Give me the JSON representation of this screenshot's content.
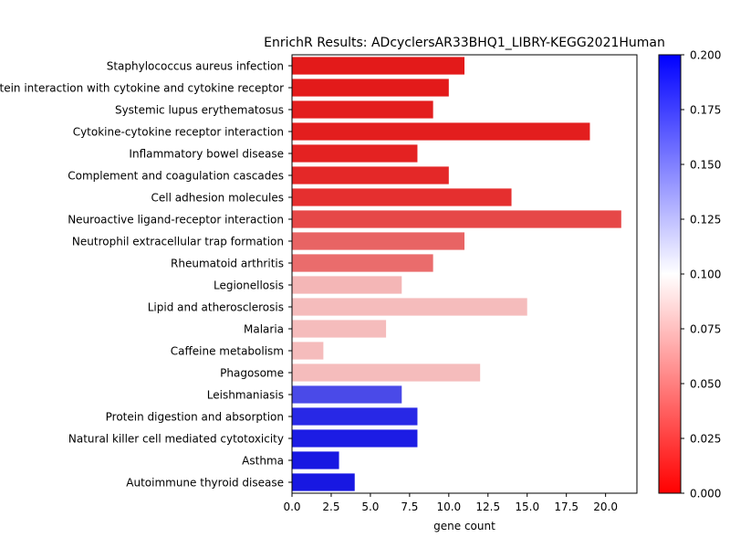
{
  "chart_data": {
    "type": "bar",
    "orientation": "horizontal",
    "title": "EnrichR Results: ADcyclersAR33BHQ1_LIBRY-KEGG2021Human",
    "xlabel": "gene count",
    "ylabel": "",
    "xlim": [
      0,
      22
    ],
    "xticks": [
      "0.0",
      "2.5",
      "5.0",
      "7.5",
      "10.0",
      "12.5",
      "15.0",
      "17.5",
      "20.0"
    ],
    "grid": false,
    "categories": [
      "Staphylococcus aureus infection",
      "Viral protein interaction with cytokine and cytokine receptor",
      "Systemic lupus erythematosus",
      "Cytokine-cytokine receptor interaction",
      "Inflammatory bowel disease",
      "Complement and coagulation cascades",
      "Cell adhesion molecules",
      "Neuroactive ligand-receptor interaction",
      "Neutrophil extracellular trap formation",
      "Rheumatoid arthritis",
      "Legionellosis",
      "Lipid and atherosclerosis",
      "Malaria",
      "Caffeine metabolism",
      "Phagosome",
      "Leishmaniasis",
      "Protein digestion and absorption",
      "Natural killer cell mediated cytotoxicity",
      "Asthma",
      "Autoimmune thyroid disease"
    ],
    "values": [
      11,
      10,
      9,
      19,
      8,
      10,
      14,
      21,
      11,
      9,
      7,
      15,
      6,
      2,
      12,
      7,
      8,
      8,
      3,
      4
    ],
    "bar_colors": [
      "#e31a1a",
      "#e31a1a",
      "#e31e1e",
      "#e31e1e",
      "#e42222",
      "#e42828",
      "#e52f2f",
      "#e64848",
      "#e86464",
      "#ea6c6c",
      "#f4b6b6",
      "#f5bcbc",
      "#f5bcbc",
      "#f5bcbc",
      "#f5bcbc",
      "#4a4ae8",
      "#2828e6",
      "#1c1ce4",
      "#1818e2",
      "#1818e2"
    ],
    "colorbar": {
      "min": 0.0,
      "max": 0.2,
      "ticks": [
        "0.000",
        "0.025",
        "0.050",
        "0.075",
        "0.100",
        "0.125",
        "0.150",
        "0.175",
        "0.200"
      ],
      "colors": [
        "#ff0000",
        "#ffffff",
        "#0000ff"
      ]
    }
  }
}
